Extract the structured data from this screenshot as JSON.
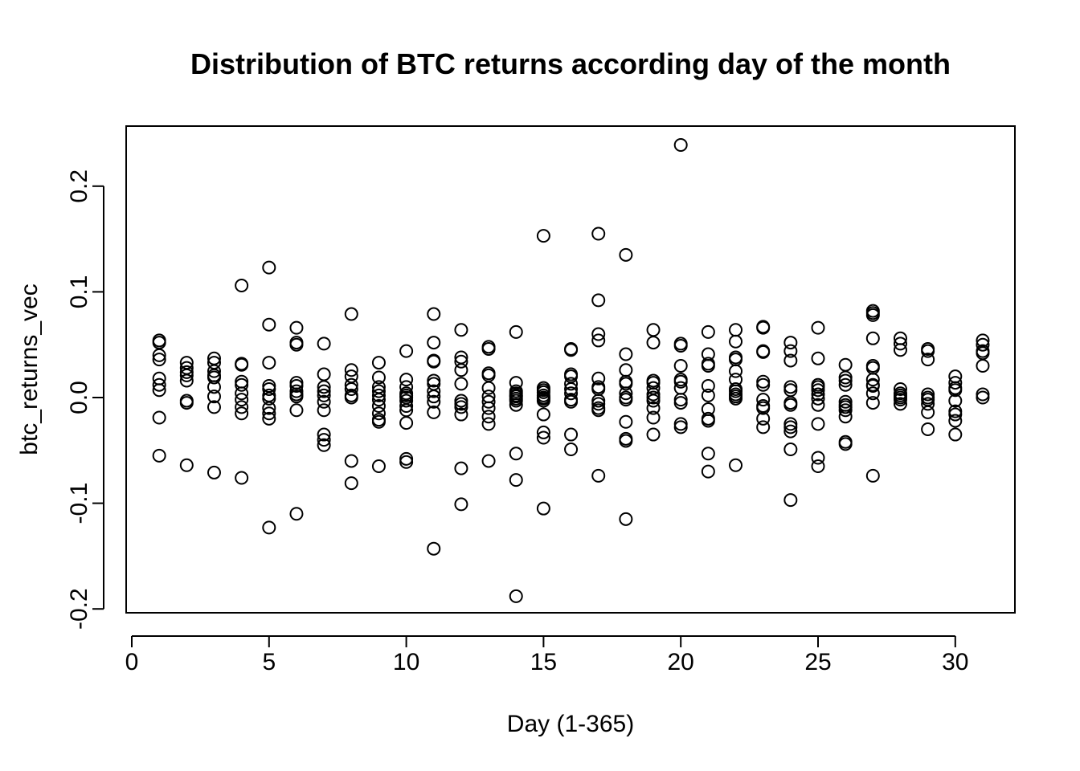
{
  "chart_data": {
    "type": "scatter",
    "title": "Distribution of BTC returns according day of the month",
    "xlabel": "Day (1-365)",
    "ylabel": "btc_returns_vec",
    "xlim": [
      0,
      32
    ],
    "ylim": [
      -0.2,
      0.25
    ],
    "grid": false,
    "legend": "none",
    "xticks": [
      0,
      5,
      10,
      15,
      20,
      25,
      30
    ],
    "xtick_labels": [
      "0",
      "5",
      "10",
      "15",
      "20",
      "25",
      "30"
    ],
    "yticks": [
      -0.2,
      -0.1,
      0.0,
      0.1,
      0.2
    ],
    "ytick_labels": [
      "-0.2",
      "-0.1",
      "0.0",
      "0.1",
      "0.2"
    ],
    "points": [
      [
        1,
        0.054
      ],
      [
        1,
        0.052
      ],
      [
        1,
        0.04
      ],
      [
        1,
        0.036
      ],
      [
        1,
        0.018
      ],
      [
        1,
        0.012
      ],
      [
        1,
        0.007
      ],
      [
        1,
        -0.019
      ],
      [
        1,
        -0.055
      ],
      [
        2,
        0.033
      ],
      [
        2,
        0.028
      ],
      [
        2,
        0.024
      ],
      [
        2,
        0.021
      ],
      [
        2,
        0.016
      ],
      [
        2,
        -0.003
      ],
      [
        2,
        -0.005
      ],
      [
        2,
        -0.064
      ],
      [
        3,
        0.037
      ],
      [
        3,
        0.033
      ],
      [
        3,
        0.025
      ],
      [
        3,
        0.021
      ],
      [
        3,
        0.019
      ],
      [
        3,
        0.01
      ],
      [
        3,
        0.001
      ],
      [
        3,
        -0.009
      ],
      [
        3,
        -0.071
      ],
      [
        4,
        0.106
      ],
      [
        4,
        0.032
      ],
      [
        4,
        0.031
      ],
      [
        4,
        0.015
      ],
      [
        4,
        0.012
      ],
      [
        4,
        0.004
      ],
      [
        4,
        -0.002
      ],
      [
        4,
        -0.009
      ],
      [
        4,
        -0.015
      ],
      [
        4,
        -0.076
      ],
      [
        5,
        0.123
      ],
      [
        5,
        0.069
      ],
      [
        5,
        0.033
      ],
      [
        5,
        0.011
      ],
      [
        5,
        0.008
      ],
      [
        5,
        0.002
      ],
      [
        5,
        -0.001
      ],
      [
        5,
        -0.01
      ],
      [
        5,
        -0.015
      ],
      [
        5,
        -0.02
      ],
      [
        5,
        -0.123
      ],
      [
        6,
        0.066
      ],
      [
        6,
        0.052
      ],
      [
        6,
        0.05
      ],
      [
        6,
        0.014
      ],
      [
        6,
        0.011
      ],
      [
        6,
        0.006
      ],
      [
        6,
        0.003
      ],
      [
        6,
        0.001
      ],
      [
        6,
        -0.012
      ],
      [
        6,
        -0.11
      ],
      [
        7,
        0.051
      ],
      [
        7,
        0.022
      ],
      [
        7,
        0.01
      ],
      [
        7,
        0.006
      ],
      [
        7,
        0.002
      ],
      [
        7,
        -0.004
      ],
      [
        7,
        -0.012
      ],
      [
        7,
        -0.035
      ],
      [
        7,
        -0.04
      ],
      [
        7,
        -0.045
      ],
      [
        8,
        0.079
      ],
      [
        8,
        0.026
      ],
      [
        8,
        0.02
      ],
      [
        8,
        0.012
      ],
      [
        8,
        0.008
      ],
      [
        8,
        0.002
      ],
      [
        8,
        0.0
      ],
      [
        8,
        -0.06
      ],
      [
        8,
        -0.081
      ],
      [
        9,
        0.033
      ],
      [
        9,
        0.019
      ],
      [
        9,
        0.01
      ],
      [
        9,
        0.006
      ],
      [
        9,
        0.002
      ],
      [
        9,
        -0.002
      ],
      [
        9,
        -0.008
      ],
      [
        9,
        -0.015
      ],
      [
        9,
        -0.021
      ],
      [
        9,
        -0.023
      ],
      [
        9,
        -0.065
      ],
      [
        10,
        0.044
      ],
      [
        10,
        0.017
      ],
      [
        10,
        0.01
      ],
      [
        10,
        0.004
      ],
      [
        10,
        0.002
      ],
      [
        10,
        0.0
      ],
      [
        10,
        -0.003
      ],
      [
        10,
        -0.008
      ],
      [
        10,
        -0.012
      ],
      [
        10,
        -0.024
      ],
      [
        10,
        -0.058
      ],
      [
        10,
        -0.061
      ],
      [
        11,
        0.079
      ],
      [
        11,
        0.052
      ],
      [
        11,
        0.035
      ],
      [
        11,
        0.034
      ],
      [
        11,
        0.016
      ],
      [
        11,
        0.013
      ],
      [
        11,
        0.006
      ],
      [
        11,
        0.001
      ],
      [
        11,
        -0.004
      ],
      [
        11,
        -0.014
      ],
      [
        11,
        -0.143
      ],
      [
        12,
        0.064
      ],
      [
        12,
        0.038
      ],
      [
        12,
        0.034
      ],
      [
        12,
        0.026
      ],
      [
        12,
        0.013
      ],
      [
        12,
        -0.003
      ],
      [
        12,
        -0.006
      ],
      [
        12,
        -0.009
      ],
      [
        12,
        -0.016
      ],
      [
        12,
        -0.067
      ],
      [
        12,
        -0.101
      ],
      [
        13,
        0.048
      ],
      [
        13,
        0.046
      ],
      [
        13,
        0.023
      ],
      [
        13,
        0.021
      ],
      [
        13,
        0.009
      ],
      [
        13,
        0.001
      ],
      [
        13,
        -0.004
      ],
      [
        13,
        -0.01
      ],
      [
        13,
        -0.018
      ],
      [
        13,
        -0.025
      ],
      [
        13,
        -0.06
      ],
      [
        14,
        0.062
      ],
      [
        14,
        0.014
      ],
      [
        14,
        0.006
      ],
      [
        14,
        0.004
      ],
      [
        14,
        0.002
      ],
      [
        14,
        0.001
      ],
      [
        14,
        -0.001
      ],
      [
        14,
        -0.003
      ],
      [
        14,
        -0.007
      ],
      [
        14,
        -0.053
      ],
      [
        14,
        -0.078
      ],
      [
        14,
        -0.188
      ],
      [
        15,
        0.153
      ],
      [
        15,
        0.009
      ],
      [
        15,
        0.007
      ],
      [
        15,
        0.005
      ],
      [
        15,
        0.002
      ],
      [
        15,
        0.0
      ],
      [
        15,
        -0.001
      ],
      [
        15,
        -0.003
      ],
      [
        15,
        -0.016
      ],
      [
        15,
        -0.033
      ],
      [
        15,
        -0.038
      ],
      [
        15,
        -0.105
      ],
      [
        16,
        0.046
      ],
      [
        16,
        0.045
      ],
      [
        16,
        0.022
      ],
      [
        16,
        0.02
      ],
      [
        16,
        0.013
      ],
      [
        16,
        0.008
      ],
      [
        16,
        0.004
      ],
      [
        16,
        -0.002
      ],
      [
        16,
        -0.004
      ],
      [
        16,
        -0.035
      ],
      [
        16,
        -0.049
      ],
      [
        17,
        0.155
      ],
      [
        17,
        0.092
      ],
      [
        17,
        0.06
      ],
      [
        17,
        0.054
      ],
      [
        17,
        0.018
      ],
      [
        17,
        0.01
      ],
      [
        17,
        0.008
      ],
      [
        17,
        -0.003
      ],
      [
        17,
        -0.006
      ],
      [
        17,
        -0.01
      ],
      [
        17,
        -0.012
      ],
      [
        17,
        -0.074
      ],
      [
        18,
        0.135
      ],
      [
        18,
        0.041
      ],
      [
        18,
        0.026
      ],
      [
        18,
        0.015
      ],
      [
        18,
        0.013
      ],
      [
        18,
        0.004
      ],
      [
        18,
        0.0
      ],
      [
        18,
        -0.002
      ],
      [
        18,
        -0.023
      ],
      [
        18,
        -0.039
      ],
      [
        18,
        -0.041
      ],
      [
        18,
        -0.115
      ],
      [
        19,
        0.064
      ],
      [
        19,
        0.052
      ],
      [
        19,
        0.016
      ],
      [
        19,
        0.014
      ],
      [
        19,
        0.009
      ],
      [
        19,
        0.003
      ],
      [
        19,
        0.0
      ],
      [
        19,
        -0.003
      ],
      [
        19,
        -0.01
      ],
      [
        19,
        -0.019
      ],
      [
        19,
        -0.035
      ],
      [
        20,
        0.239
      ],
      [
        20,
        0.051
      ],
      [
        20,
        0.049
      ],
      [
        20,
        0.03
      ],
      [
        20,
        0.017
      ],
      [
        20,
        0.015
      ],
      [
        20,
        0.009
      ],
      [
        20,
        -0.002
      ],
      [
        20,
        -0.005
      ],
      [
        20,
        -0.025
      ],
      [
        20,
        -0.028
      ],
      [
        21,
        0.062
      ],
      [
        21,
        0.041
      ],
      [
        21,
        0.032
      ],
      [
        21,
        0.03
      ],
      [
        21,
        0.011
      ],
      [
        21,
        0.002
      ],
      [
        21,
        -0.011
      ],
      [
        21,
        -0.02
      ],
      [
        21,
        -0.022
      ],
      [
        21,
        -0.053
      ],
      [
        21,
        -0.07
      ],
      [
        22,
        0.064
      ],
      [
        22,
        0.053
      ],
      [
        22,
        0.038
      ],
      [
        22,
        0.036
      ],
      [
        22,
        0.025
      ],
      [
        22,
        0.017
      ],
      [
        22,
        0.008
      ],
      [
        22,
        0.006
      ],
      [
        22,
        0.003
      ],
      [
        22,
        0.001
      ],
      [
        22,
        -0.001
      ],
      [
        22,
        -0.064
      ],
      [
        23,
        0.067
      ],
      [
        23,
        0.066
      ],
      [
        23,
        0.044
      ],
      [
        23,
        0.043
      ],
      [
        23,
        0.015
      ],
      [
        23,
        0.012
      ],
      [
        23,
        -0.002
      ],
      [
        23,
        -0.008
      ],
      [
        23,
        -0.01
      ],
      [
        23,
        -0.02
      ],
      [
        23,
        -0.028
      ],
      [
        24,
        0.052
      ],
      [
        24,
        0.044
      ],
      [
        24,
        0.035
      ],
      [
        24,
        0.01
      ],
      [
        24,
        0.007
      ],
      [
        24,
        -0.005
      ],
      [
        24,
        -0.007
      ],
      [
        24,
        -0.025
      ],
      [
        24,
        -0.028
      ],
      [
        24,
        -0.032
      ],
      [
        24,
        -0.049
      ],
      [
        24,
        -0.097
      ],
      [
        25,
        0.066
      ],
      [
        25,
        0.037
      ],
      [
        25,
        0.012
      ],
      [
        25,
        0.01
      ],
      [
        25,
        0.007
      ],
      [
        25,
        0.003
      ],
      [
        25,
        -0.001
      ],
      [
        25,
        -0.007
      ],
      [
        25,
        -0.025
      ],
      [
        25,
        -0.057
      ],
      [
        25,
        -0.065
      ],
      [
        26,
        0.031
      ],
      [
        26,
        0.019
      ],
      [
        26,
        0.016
      ],
      [
        26,
        0.012
      ],
      [
        26,
        -0.004
      ],
      [
        26,
        -0.007
      ],
      [
        26,
        -0.009
      ],
      [
        26,
        -0.012
      ],
      [
        26,
        -0.018
      ],
      [
        26,
        -0.042
      ],
      [
        26,
        -0.044
      ],
      [
        27,
        0.082
      ],
      [
        27,
        0.08
      ],
      [
        27,
        0.078
      ],
      [
        27,
        0.056
      ],
      [
        27,
        0.03
      ],
      [
        27,
        0.028
      ],
      [
        27,
        0.017
      ],
      [
        27,
        0.012
      ],
      [
        27,
        0.011
      ],
      [
        27,
        0.004
      ],
      [
        27,
        -0.005
      ],
      [
        27,
        -0.074
      ],
      [
        28,
        0.056
      ],
      [
        28,
        0.051
      ],
      [
        28,
        0.045
      ],
      [
        28,
        0.008
      ],
      [
        28,
        0.004
      ],
      [
        28,
        0.002
      ],
      [
        28,
        0.0
      ],
      [
        28,
        -0.002
      ],
      [
        28,
        -0.006
      ],
      [
        29,
        0.046
      ],
      [
        29,
        0.044
      ],
      [
        29,
        0.036
      ],
      [
        29,
        0.003
      ],
      [
        29,
        0.0
      ],
      [
        29,
        -0.002
      ],
      [
        29,
        -0.006
      ],
      [
        29,
        -0.014
      ],
      [
        29,
        -0.03
      ],
      [
        30,
        0.02
      ],
      [
        30,
        0.014
      ],
      [
        30,
        0.009
      ],
      [
        30,
        0.007
      ],
      [
        30,
        -0.003
      ],
      [
        30,
        -0.013
      ],
      [
        30,
        -0.016
      ],
      [
        30,
        -0.022
      ],
      [
        30,
        -0.035
      ],
      [
        31,
        0.054
      ],
      [
        31,
        0.05
      ],
      [
        31,
        0.044
      ],
      [
        31,
        0.042
      ],
      [
        31,
        0.03
      ],
      [
        31,
        0.003
      ],
      [
        31,
        0.0
      ]
    ]
  }
}
